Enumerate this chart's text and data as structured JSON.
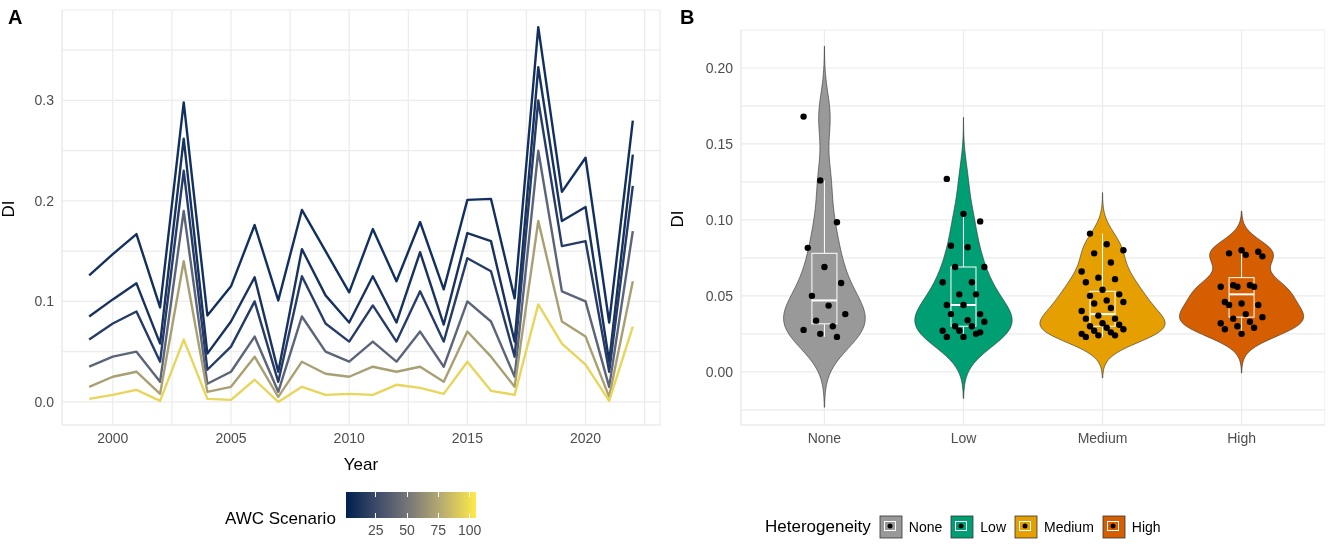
{
  "chart_data": [
    {
      "type": "line",
      "title": "A",
      "xlabel": "Year",
      "ylabel": "DI",
      "clabel": "AWC Scenario",
      "clim": [
        1,
        105
      ],
      "cticks": [
        25,
        50,
        75,
        100
      ],
      "grid": true,
      "x": [
        1999,
        2000,
        2001,
        2002,
        2003,
        2004,
        2005,
        2006,
        2007,
        2008,
        2009,
        2010,
        2011,
        2012,
        2013,
        2014,
        2015,
        2016,
        2017,
        2018,
        2019,
        2020,
        2021,
        2022
      ],
      "series": [
        {
          "color": "#12305f",
          "values": [
            0.126,
            0.147,
            0.167,
            0.094,
            0.298,
            0.086,
            0.115,
            0.176,
            0.101,
            0.191,
            0.15,
            0.109,
            0.172,
            0.12,
            0.179,
            0.112,
            0.201,
            0.202,
            0.103,
            0.373,
            0.209,
            0.243,
            0.079,
            0.28
          ]
        },
        {
          "color": "#17325f",
          "values": [
            0.085,
            0.102,
            0.118,
            0.058,
            0.262,
            0.048,
            0.08,
            0.124,
            0.03,
            0.152,
            0.106,
            0.079,
            0.125,
            0.079,
            0.149,
            0.077,
            0.168,
            0.16,
            0.06,
            0.333,
            0.18,
            0.194,
            0.04,
            0.246
          ]
        },
        {
          "color": "#263c68",
          "values": [
            0.062,
            0.078,
            0.09,
            0.04,
            0.23,
            0.032,
            0.055,
            0.1,
            0.02,
            0.125,
            0.078,
            0.06,
            0.096,
            0.06,
            0.11,
            0.06,
            0.143,
            0.13,
            0.045,
            0.3,
            0.155,
            0.16,
            0.03,
            0.215
          ]
        },
        {
          "color": "#5b6478",
          "values": [
            0.035,
            0.045,
            0.05,
            0.02,
            0.19,
            0.018,
            0.03,
            0.065,
            0.01,
            0.085,
            0.05,
            0.04,
            0.06,
            0.04,
            0.07,
            0.035,
            0.1,
            0.08,
            0.025,
            0.25,
            0.11,
            0.1,
            0.015,
            0.17
          ]
        },
        {
          "color": "#a89f72",
          "values": [
            0.015,
            0.025,
            0.03,
            0.008,
            0.14,
            0.01,
            0.015,
            0.045,
            0.005,
            0.04,
            0.028,
            0.025,
            0.035,
            0.03,
            0.035,
            0.02,
            0.07,
            0.045,
            0.015,
            0.18,
            0.08,
            0.065,
            0.005,
            0.12
          ]
        },
        {
          "color": "#e8d55c",
          "values": [
            0.003,
            0.007,
            0.012,
            0.001,
            0.062,
            0.003,
            0.002,
            0.022,
            0.0,
            0.015,
            0.007,
            0.008,
            0.007,
            0.017,
            0.014,
            0.008,
            0.04,
            0.011,
            0.007,
            0.097,
            0.058,
            0.037,
            0.001,
            0.075
          ]
        }
      ],
      "xlim": [
        1997.85,
        2023.15
      ],
      "xticks": [
        2000,
        {
          "value": 2002.5,
          "label": null
        },
        2005,
        {
          "value": 2007.5,
          "label": null
        },
        2010,
        {
          "value": 2012.5,
          "label": null
        },
        2015,
        {
          "value": 2017.5,
          "label": null
        },
        2020,
        {
          "value": 2022.5,
          "label": null
        }
      ],
      "ylim": [
        -0.023,
        0.39
      ],
      "yticks": [
        {
          "value": 0,
          "label": "0.0"
        },
        {
          "value": 0.05,
          "label": null
        },
        0.1,
        {
          "value": 0.15,
          "label": null
        },
        0.2,
        {
          "value": 0.25,
          "label": null
        },
        0.3,
        {
          "value": 0.35,
          "label": null
        }
      ]
    },
    {
      "type": "box",
      "title": "B",
      "ylabel": "DI",
      "legend_title": "Heterogeneity",
      "grid": true,
      "marker": "circle",
      "categories": [
        "None",
        "Low",
        "Medium",
        "High"
      ],
      "colors": [
        "#999999",
        "#009e73",
        "#e69f00",
        "#d55e00"
      ],
      "boxes": [
        {
          "low": 0.023,
          "q1": 0.0316,
          "median": 0.047,
          "q3": 0.078,
          "high": 0.126
        },
        {
          "low": 0.023,
          "q1": 0.03,
          "median": 0.044,
          "q3": 0.069,
          "high": 0.104
        },
        {
          "low": 0.023,
          "q1": 0.03,
          "median": 0.038,
          "q3": 0.053,
          "high": 0.091
        },
        {
          "low": 0.025,
          "q1": 0.036,
          "median": 0.051,
          "q3": 0.062,
          "high": 0.08
        }
      ],
      "series": [
        {
          "type": "scatter",
          "color": "#000000",
          "x": [
            "None",
            "None",
            "None",
            "None",
            "None",
            "None",
            "None",
            "None",
            "None",
            "None",
            "None",
            "None",
            "None",
            "None",
            "Low",
            "Low",
            "Low",
            "Low",
            "Low",
            "Low",
            "Low",
            "Low",
            "Low",
            "Low",
            "Low",
            "Low",
            "Low",
            "Low",
            "Low",
            "Low",
            "Low",
            "Low",
            "Low",
            "Low",
            "Low",
            "Low",
            "Low",
            "Low",
            "Low",
            "Medium",
            "Medium",
            "Medium",
            "Medium",
            "Medium",
            "Medium",
            "Medium",
            "Medium",
            "Medium",
            "Medium",
            "Medium",
            "Medium",
            "Medium",
            "Medium",
            "Medium",
            "Medium",
            "Medium",
            "Medium",
            "Medium",
            "Medium",
            "Medium",
            "Medium",
            "Medium",
            "Medium",
            "Medium",
            "Medium",
            "Medium",
            "Medium",
            "Medium",
            "Medium",
            "Medium",
            "High",
            "High",
            "High",
            "High",
            "High",
            "High",
            "High",
            "High",
            "High",
            "High",
            "High",
            "High",
            "High",
            "High",
            "High",
            "High",
            "High",
            "High",
            "High",
            "High",
            "High",
            "High",
            "High"
          ],
          "values": [
            0.168,
            0.126,
            0.0985,
            0.0816,
            0.069,
            0.0585,
            0.05,
            0.0436,
            0.038,
            0.0337,
            0.03,
            0.0276,
            0.025,
            0.023,
            0.127,
            0.104,
            0.099,
            0.083,
            0.082,
            0.069,
            0.069,
            0.059,
            0.059,
            0.051,
            0.051,
            0.044,
            0.044,
            0.038,
            0.038,
            0.034,
            0.033,
            0.03,
            0.03,
            0.027,
            0.027,
            0.025,
            0.023,
            0.023,
            0.026,
            0.091,
            0.084,
            0.08,
            0.078,
            0.072,
            0.066,
            0.062,
            0.061,
            0.059,
            0.054,
            0.051,
            0.05,
            0.047,
            0.046,
            0.045,
            0.042,
            0.04,
            0.037,
            0.035,
            0.035,
            0.032,
            0.031,
            0.03,
            0.029,
            0.028,
            0.027,
            0.026,
            0.025,
            0.024,
            0.024,
            0.023,
            0.08,
            0.079,
            0.078,
            0.077,
            0.076,
            0.057,
            0.057,
            0.056,
            0.056,
            0.056,
            0.046,
            0.045,
            0.044,
            0.044,
            0.038,
            0.036,
            0.035,
            0.033,
            0.032,
            0.03,
            0.029,
            0.028,
            0.025
          ]
        }
      ],
      "ylim": [
        -0.035,
        0.225
      ],
      "yticks": [
        {
          "value": -0.025,
          "label": null
        },
        {
          "value": 0,
          "label": "0.00"
        },
        {
          "value": 0.025,
          "label": null
        },
        0.05,
        {
          "value": 0.075,
          "label": null
        },
        {
          "value": 0.1,
          "label": "0.10"
        },
        {
          "value": 0.125,
          "label": null
        },
        0.15,
        {
          "value": 0.175,
          "label": null
        },
        {
          "value": 0.2,
          "label": "0.20"
        }
      ]
    }
  ]
}
